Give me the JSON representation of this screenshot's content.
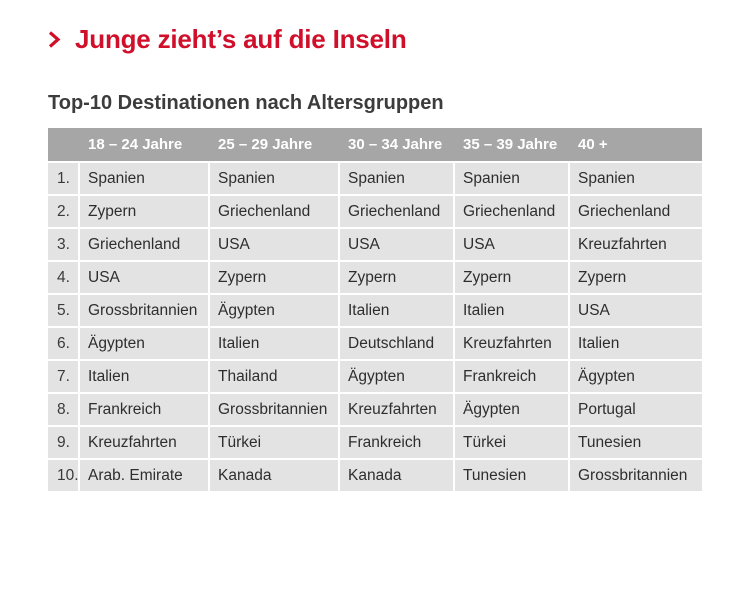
{
  "headline": "Junge zieht’s auf die Inseln",
  "colors": {
    "accent": "#d0102b",
    "header_bg": "#a6a6a6",
    "row_bg": "#e3e3e3",
    "text": "#2e2e2e"
  },
  "icons": {
    "headline_marker": "chevron-right-icon"
  },
  "chart_data": {
    "type": "table",
    "title": "Top-10 Destinationen nach Altersgruppen",
    "columns": [
      "",
      "18 – 24 Jahre",
      "25 – 29 Jahre",
      "30 – 34 Jahre",
      "35 – 39 Jahre",
      "40 +"
    ],
    "rows": [
      {
        "rank": "1.",
        "cells": [
          "Spanien",
          "Spanien",
          "Spanien",
          "Spanien",
          "Spanien"
        ]
      },
      {
        "rank": "2.",
        "cells": [
          "Zypern",
          "Griechenland",
          "Griechenland",
          "Griechenland",
          "Griechenland"
        ]
      },
      {
        "rank": "3.",
        "cells": [
          "Griechenland",
          "USA",
          "USA",
          "USA",
          "Kreuzfahrten"
        ]
      },
      {
        "rank": "4.",
        "cells": [
          "USA",
          "Zypern",
          "Zypern",
          "Zypern",
          "Zypern"
        ]
      },
      {
        "rank": "5.",
        "cells": [
          "Grossbritannien",
          "Ägypten",
          "Italien",
          "Italien",
          "USA"
        ]
      },
      {
        "rank": "6.",
        "cells": [
          "Ägypten",
          "Italien",
          "Deutschland",
          "Kreuzfahrten",
          "Italien"
        ]
      },
      {
        "rank": "7.",
        "cells": [
          "Italien",
          "Thailand",
          "Ägypten",
          "Frankreich",
          "Ägypten"
        ]
      },
      {
        "rank": "8.",
        "cells": [
          "Frankreich",
          "Grossbritannien",
          "Kreuzfahrten",
          "Ägypten",
          "Portugal"
        ]
      },
      {
        "rank": "9.",
        "cells": [
          "Kreuzfahrten",
          "Türkei",
          "Frankreich",
          "Türkei",
          "Tunesien"
        ]
      },
      {
        "rank": "10.",
        "cells": [
          "Arab. Emirate",
          "Kanada",
          "Kanada",
          "Tunesien",
          "Grossbritannien"
        ]
      }
    ]
  }
}
